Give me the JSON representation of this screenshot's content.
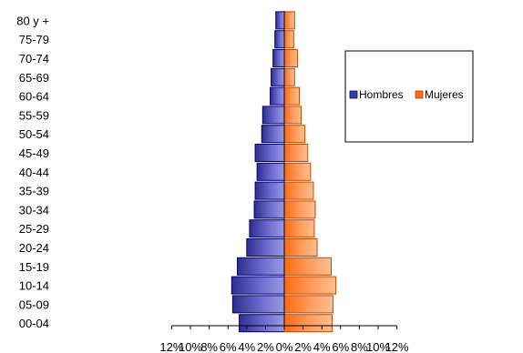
{
  "chart_data": {
    "type": "bar",
    "orientation": "horizontal",
    "layout": "population-pyramid",
    "categories": [
      "00-04",
      "05-09",
      "10-14",
      "15-19",
      "20-24",
      "25-29",
      "30-34",
      "35-39",
      "40-44",
      "45-49",
      "50-54",
      "55-59",
      "60-64",
      "65-69",
      "70-74",
      "75-79",
      "80 y +"
    ],
    "series": [
      {
        "name": "Hombres",
        "side": "left",
        "color": "#3b3ba3",
        "values": [
          4.8,
          5.5,
          5.6,
          5.0,
          4.0,
          3.7,
          3.2,
          3.1,
          2.9,
          3.1,
          2.4,
          2.3,
          1.5,
          1.4,
          1.2,
          1.0,
          0.9
        ]
      },
      {
        "name": "Mujeres",
        "side": "right",
        "color": "#ff6a1a",
        "values": [
          5.1,
          5.2,
          5.5,
          5.0,
          3.5,
          3.2,
          3.3,
          3.1,
          2.8,
          2.5,
          2.2,
          1.8,
          1.6,
          1.1,
          1.4,
          1.0,
          1.1
        ]
      }
    ],
    "xlim": [
      -12,
      12
    ],
    "x_ticks": [
      -12,
      -10,
      -8,
      -6,
      -4,
      -2,
      0,
      2,
      4,
      6,
      8,
      10,
      12
    ],
    "x_tick_labels": [
      "12%",
      "10%",
      "8%",
      "6%",
      "4%",
      "2%",
      "0%",
      "2%",
      "4%",
      "6%",
      "8%",
      "10%",
      "12%"
    ],
    "title": "",
    "xlabel": "",
    "ylabel": "",
    "grid": false,
    "legend": "right"
  }
}
